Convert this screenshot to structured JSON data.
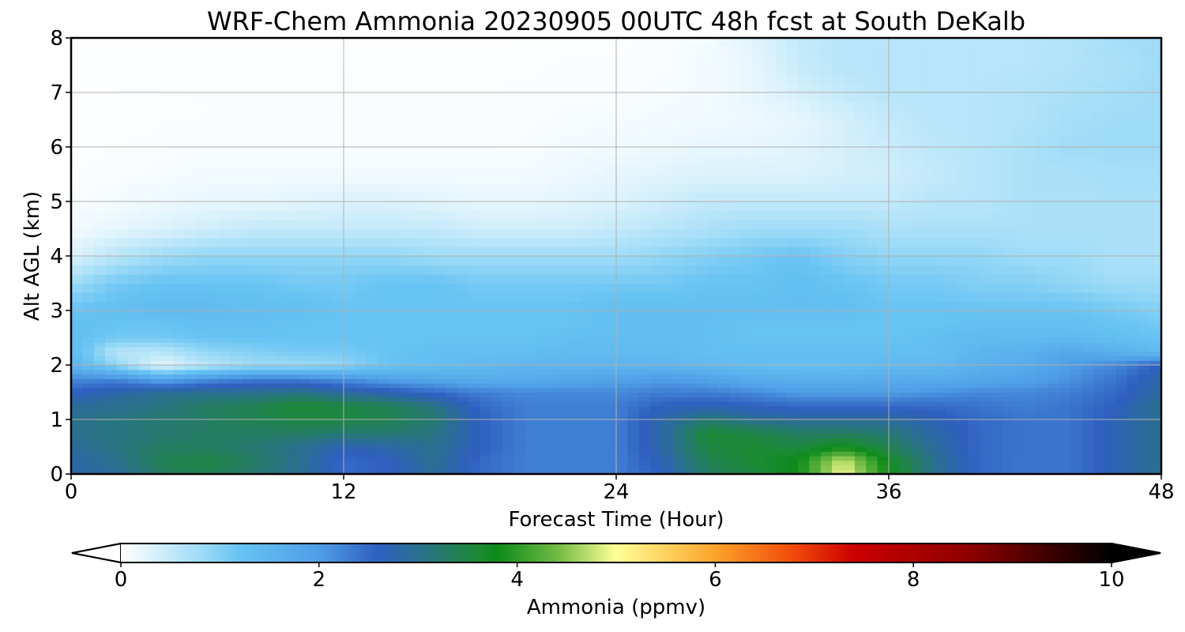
{
  "chart_data": {
    "type": "heatmap",
    "title": "WRF-Chem Ammonia  20230905 00UTC 48h fcst at South DeKalb",
    "xlabel": "Forecast Time (Hour)",
    "ylabel": "Alt AGL (km)",
    "xlim": [
      0,
      48
    ],
    "ylim": [
      0,
      8
    ],
    "xticks": [
      "0",
      "12",
      "24",
      "36",
      "48"
    ],
    "yticks": [
      "0",
      "1",
      "2",
      "3",
      "4",
      "5",
      "6",
      "7",
      "8"
    ],
    "grid": true,
    "x_hours": [
      0,
      2,
      4,
      6,
      8,
      10,
      12,
      14,
      16,
      18,
      20,
      22,
      24,
      26,
      28,
      30,
      32,
      34,
      36,
      38,
      40,
      42,
      44,
      46,
      48
    ],
    "y_km": [
      0,
      0.25,
      0.5,
      0.75,
      1.0,
      1.25,
      1.5,
      1.75,
      2.0,
      2.25,
      2.5,
      2.75,
      3.0,
      3.5,
      4.0,
      4.5,
      5.0,
      5.5,
      6.0,
      6.5,
      7.0,
      7.5,
      8.0
    ],
    "values": [
      [
        2.8,
        2.9,
        3.3,
        3.4,
        3.2,
        3.0,
        2.5,
        2.6,
        2.9,
        2.5,
        2.3,
        2.3,
        2.3,
        2.6,
        3.3,
        3.5,
        3.8,
        5.0,
        3.8,
        3.0,
        2.5,
        2.4,
        2.4,
        2.7,
        3.0
      ],
      [
        2.8,
        3.0,
        3.4,
        3.5,
        3.3,
        3.0,
        2.5,
        2.6,
        3.0,
        2.5,
        2.3,
        2.3,
        2.3,
        2.7,
        3.4,
        3.6,
        3.8,
        4.8,
        3.7,
        3.0,
        2.5,
        2.4,
        2.4,
        2.7,
        3.0
      ],
      [
        2.9,
        3.1,
        3.3,
        3.3,
        3.2,
        3.0,
        2.7,
        2.8,
        3.0,
        2.6,
        2.3,
        2.3,
        2.3,
        2.8,
        3.5,
        3.6,
        3.5,
        3.8,
        3.4,
        2.9,
        2.5,
        2.4,
        2.4,
        2.7,
        3.0
      ],
      [
        3.0,
        3.1,
        3.2,
        3.3,
        3.3,
        3.3,
        3.2,
        3.2,
        3.1,
        2.6,
        2.3,
        2.3,
        2.3,
        2.8,
        3.6,
        3.5,
        3.3,
        3.3,
        3.2,
        2.8,
        2.5,
        2.4,
        2.4,
        2.7,
        3.0
      ],
      [
        3.0,
        3.1,
        3.2,
        3.3,
        3.4,
        3.5,
        3.5,
        3.4,
        3.2,
        2.6,
        2.3,
        2.3,
        2.3,
        2.8,
        3.2,
        3.0,
        2.9,
        2.9,
        2.9,
        2.7,
        2.5,
        2.4,
        2.4,
        2.7,
        3.0
      ],
      [
        2.9,
        3.0,
        3.1,
        3.3,
        3.4,
        3.6,
        3.5,
        3.4,
        3.1,
        2.5,
        2.3,
        2.3,
        2.3,
        2.6,
        2.7,
        2.6,
        2.5,
        2.5,
        2.5,
        2.5,
        2.4,
        2.3,
        2.4,
        2.6,
        3.0
      ],
      [
        2.6,
        2.8,
        3.0,
        3.0,
        3.0,
        3.1,
        2.9,
        2.7,
        2.5,
        2.3,
        2.2,
        2.2,
        2.2,
        2.3,
        2.3,
        2.2,
        2.0,
        2.0,
        2.0,
        2.1,
        2.2,
        2.2,
        2.3,
        2.5,
        2.9
      ],
      [
        2.2,
        2.2,
        1.8,
        2.1,
        2.3,
        2.3,
        2.1,
        1.9,
        1.8,
        1.7,
        1.7,
        1.8,
        1.9,
        2.0,
        1.9,
        1.7,
        1.6,
        1.6,
        1.7,
        1.7,
        1.8,
        1.9,
        2.1,
        2.4,
        2.8
      ],
      [
        1.5,
        0.9,
        0.2,
        0.6,
        0.8,
        0.8,
        0.9,
        1.2,
        1.3,
        1.4,
        1.5,
        1.5,
        1.5,
        1.5,
        1.4,
        1.3,
        1.3,
        1.3,
        1.4,
        1.4,
        1.6,
        1.7,
        2.0,
        2.2,
        2.6
      ],
      [
        1.4,
        0.6,
        0.6,
        0.9,
        1.0,
        1.1,
        1.1,
        1.2,
        1.3,
        1.3,
        1.3,
        1.4,
        1.4,
        1.4,
        1.3,
        1.3,
        1.3,
        1.3,
        1.3,
        1.3,
        1.5,
        1.6,
        1.8,
        1.6,
        1.4
      ],
      [
        1.3,
        1.1,
        1.1,
        1.2,
        1.2,
        1.2,
        1.2,
        1.2,
        1.2,
        1.2,
        1.2,
        1.3,
        1.3,
        1.3,
        1.3,
        1.2,
        1.2,
        1.2,
        1.2,
        1.3,
        1.4,
        1.4,
        1.4,
        1.3,
        1.2
      ],
      [
        1.3,
        1.2,
        1.2,
        1.3,
        1.3,
        1.2,
        1.2,
        1.2,
        1.2,
        1.2,
        1.2,
        1.2,
        1.3,
        1.3,
        1.3,
        1.2,
        1.2,
        1.2,
        1.2,
        1.2,
        1.3,
        1.3,
        1.3,
        1.2,
        1.1
      ],
      [
        1.2,
        1.3,
        1.4,
        1.4,
        1.3,
        1.3,
        1.2,
        1.2,
        1.2,
        1.2,
        1.2,
        1.2,
        1.3,
        1.3,
        1.3,
        1.3,
        1.3,
        1.3,
        1.2,
        1.2,
        1.2,
        1.2,
        1.2,
        1.1,
        1.0
      ],
      [
        0.8,
        1.1,
        1.2,
        1.2,
        1.2,
        1.1,
        1.1,
        1.2,
        1.2,
        1.1,
        1.1,
        1.1,
        1.1,
        1.1,
        1.2,
        1.2,
        1.3,
        1.2,
        1.1,
        1.1,
        1.0,
        1.0,
        0.9,
        0.8,
        0.8
      ],
      [
        0.3,
        0.6,
        0.8,
        0.9,
        0.9,
        0.9,
        0.9,
        0.9,
        0.8,
        0.8,
        0.8,
        0.8,
        0.8,
        0.9,
        1.0,
        1.1,
        1.2,
        1.0,
        0.9,
        0.9,
        0.9,
        0.8,
        0.8,
        0.7,
        0.7
      ],
      [
        0.1,
        0.2,
        0.3,
        0.4,
        0.5,
        0.5,
        0.5,
        0.5,
        0.5,
        0.4,
        0.4,
        0.4,
        0.5,
        0.6,
        0.7,
        0.8,
        0.8,
        0.8,
        0.7,
        0.7,
        0.7,
        0.7,
        0.7,
        0.7,
        0.7
      ],
      [
        0.05,
        0.1,
        0.15,
        0.2,
        0.2,
        0.25,
        0.3,
        0.3,
        0.25,
        0.2,
        0.2,
        0.25,
        0.3,
        0.4,
        0.5,
        0.5,
        0.5,
        0.5,
        0.5,
        0.6,
        0.6,
        0.7,
        0.7,
        0.7,
        0.7
      ],
      [
        0.03,
        0.05,
        0.07,
        0.1,
        0.1,
        0.1,
        0.1,
        0.1,
        0.1,
        0.1,
        0.1,
        0.15,
        0.2,
        0.25,
        0.3,
        0.3,
        0.3,
        0.35,
        0.4,
        0.5,
        0.6,
        0.7,
        0.7,
        0.75,
        0.75
      ],
      [
        0.02,
        0.03,
        0.05,
        0.06,
        0.06,
        0.06,
        0.06,
        0.06,
        0.06,
        0.06,
        0.06,
        0.1,
        0.12,
        0.15,
        0.2,
        0.2,
        0.25,
        0.35,
        0.45,
        0.55,
        0.6,
        0.7,
        0.8,
        0.8,
        0.8
      ],
      [
        0.02,
        0.02,
        0.03,
        0.04,
        0.04,
        0.04,
        0.04,
        0.04,
        0.04,
        0.04,
        0.05,
        0.07,
        0.08,
        0.1,
        0.12,
        0.15,
        0.2,
        0.35,
        0.5,
        0.6,
        0.6,
        0.65,
        0.75,
        0.8,
        0.8
      ],
      [
        0.02,
        0.02,
        0.03,
        0.03,
        0.03,
        0.03,
        0.03,
        0.03,
        0.03,
        0.03,
        0.04,
        0.05,
        0.05,
        0.07,
        0.1,
        0.2,
        0.35,
        0.5,
        0.6,
        0.6,
        0.6,
        0.65,
        0.7,
        0.75,
        0.8
      ],
      [
        0.02,
        0.02,
        0.02,
        0.03,
        0.03,
        0.03,
        0.03,
        0.03,
        0.03,
        0.03,
        0.03,
        0.04,
        0.04,
        0.05,
        0.1,
        0.2,
        0.45,
        0.6,
        0.6,
        0.6,
        0.6,
        0.6,
        0.65,
        0.7,
        0.8
      ],
      [
        0.02,
        0.02,
        0.02,
        0.02,
        0.02,
        0.02,
        0.02,
        0.02,
        0.02,
        0.02,
        0.03,
        0.03,
        0.03,
        0.04,
        0.1,
        0.25,
        0.5,
        0.6,
        0.6,
        0.6,
        0.6,
        0.6,
        0.65,
        0.75,
        0.8
      ]
    ],
    "colorbar": {
      "label": "Ammonia  (ppmv)",
      "min": 0,
      "max": 10,
      "ticks": [
        "0",
        "2",
        "4",
        "6",
        "8",
        "10"
      ],
      "extend": "both",
      "orientation": "horizontal",
      "colorscale": [
        [
          0.0,
          "#ffffff"
        ],
        [
          0.8,
          "#9fdcf7"
        ],
        [
          1.2,
          "#67c3f3"
        ],
        [
          2.0,
          "#4f9ee6"
        ],
        [
          2.6,
          "#2f5fc0"
        ],
        [
          3.0,
          "#2a708f"
        ],
        [
          3.6,
          "#1c8a34"
        ],
        [
          3.8,
          "#0d8a1a"
        ],
        [
          4.4,
          "#6fba43"
        ],
        [
          5.0,
          "#ffff96"
        ],
        [
          6.0,
          "#fca32a"
        ],
        [
          6.8,
          "#f0480a"
        ],
        [
          7.4,
          "#cc0000"
        ],
        [
          8.6,
          "#8b0000"
        ],
        [
          9.4,
          "#3a0000"
        ],
        [
          10.0,
          "#000000"
        ]
      ]
    }
  }
}
